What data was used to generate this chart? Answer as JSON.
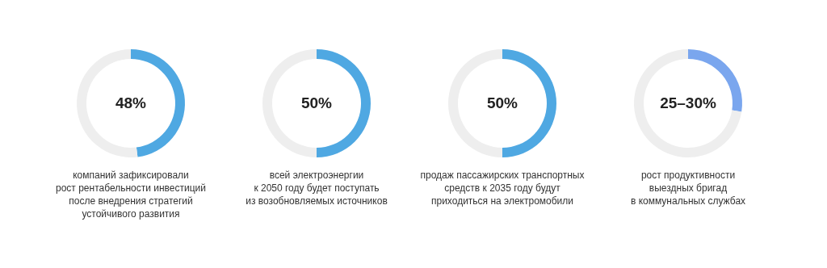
{
  "chart_data": [
    {
      "type": "donut",
      "categories": [
        null,
        null
      ],
      "values": [
        48,
        52
      ],
      "colors": [
        "#4fa8e2",
        "#eeeeee"
      ],
      "value_labels": [
        "48%",
        null
      ],
      "legend": false,
      "annotations": [
        "компаний зафиксировали\nрост рентабельности инвестиций\nпосле внедрения стратегий\nустойчивого развития"
      ]
    },
    {
      "type": "donut",
      "categories": [
        null,
        null
      ],
      "values": [
        50,
        50
      ],
      "colors": [
        "#4fa8e2",
        "#eeeeee"
      ],
      "value_labels": [
        "50%",
        null
      ],
      "legend": false,
      "annotations": [
        "всей электроэнергии\nк 2050 году будет поступать\nиз возобновляемых источников"
      ]
    },
    {
      "type": "donut",
      "categories": [
        null,
        null
      ],
      "values": [
        50,
        50
      ],
      "colors": [
        "#4fa8e2",
        "#eeeeee"
      ],
      "value_labels": [
        "50%",
        null
      ],
      "legend": false,
      "annotations": [
        "продаж пассажирских транспортных\nсредств к 2035 году будут\nприходиться на электромобили"
      ]
    },
    {
      "type": "donut",
      "categories": [
        null,
        null
      ],
      "values": [
        27.5,
        72.5
      ],
      "colors": [
        "#7aa6ee",
        "#eeeeee"
      ],
      "legend": false,
      "annotations": [
        "25–30%",
        "рост продуктивности\nвыездных бригад\nв коммунальных службах"
      ]
    }
  ]
}
